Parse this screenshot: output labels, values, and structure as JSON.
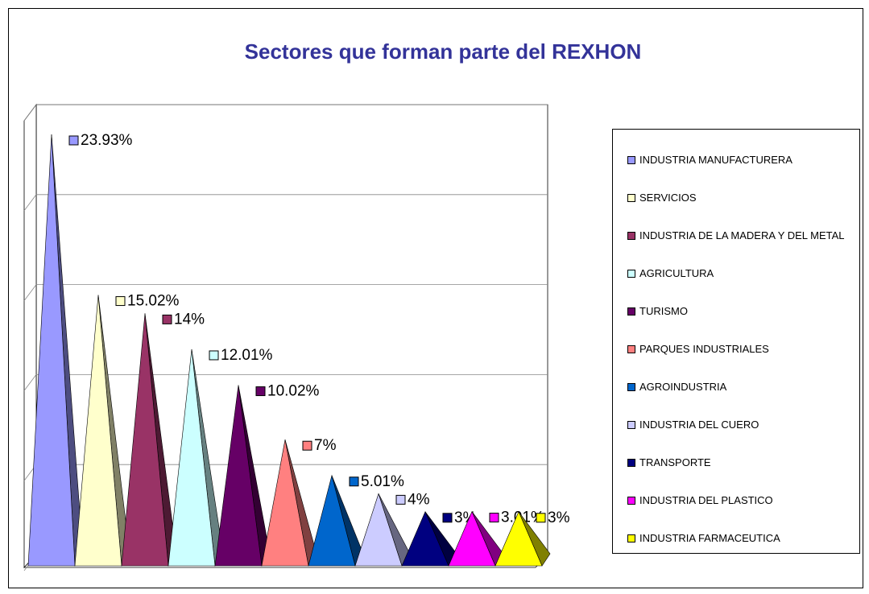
{
  "chart_data": {
    "type": "pyramid",
    "title": "Sectores que forman parte del REXHON",
    "categories": [
      "INDUSTRIA MANUFACTURERA",
      "SERVICIOS",
      "INDUSTRIA DE LA MADERA Y DEL METAL",
      "AGRICULTURA",
      "TURISMO",
      "PARQUES INDUSTRIALES",
      "AGROINDUSTRIA",
      "INDUSTRIA DEL CUERO",
      "TRANSPORTE",
      "INDUSTRIA DEL PLASTICO",
      "INDUSTRIA FARMACEUTICA"
    ],
    "values": [
      23.93,
      15.02,
      14,
      12.01,
      10.02,
      7,
      5.01,
      4,
      3,
      3.01,
      3
    ],
    "value_labels": [
      "23.93%",
      "15.02%",
      "14%",
      "12.01%",
      "10.02%",
      "7%",
      "5.01%",
      "4%",
      "3%",
      "3.01%",
      "3%"
    ],
    "colors": [
      "#9999ff",
      "#ffffcc",
      "#993366",
      "#ccffff",
      "#660066",
      "#ff8080",
      "#0066cc",
      "#ccccff",
      "#000080",
      "#ff00ff",
      "#ffff00"
    ],
    "ylim": [
      0,
      25
    ],
    "yticks": [
      0,
      5,
      10,
      15,
      20,
      25
    ],
    "grid": true,
    "legend": "right"
  }
}
